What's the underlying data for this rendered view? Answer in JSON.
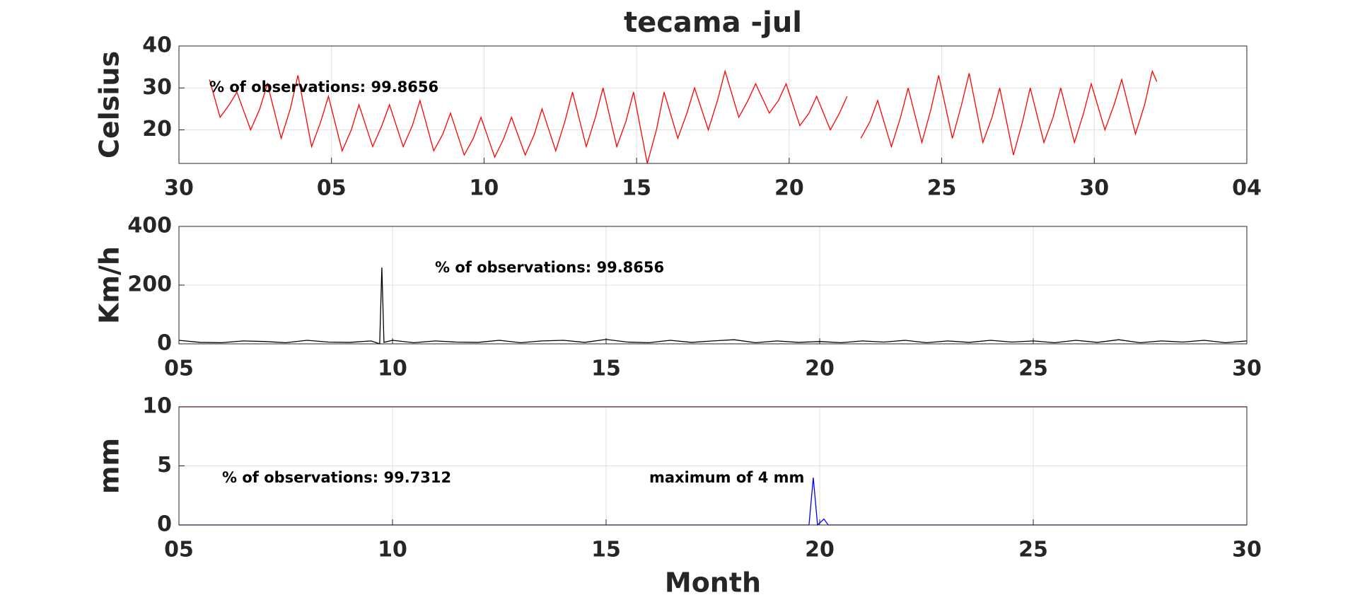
{
  "chart_data": [
    {
      "type": "line",
      "title": "tecama -jul",
      "ylabel": "Celsius",
      "grid": true,
      "xlim": [
        0,
        35
      ],
      "xticks": [
        {
          "value": 0,
          "label": "30"
        },
        {
          "value": 5,
          "label": "05"
        },
        10,
        15,
        20,
        25,
        30,
        {
          "value": 35,
          "label": "04"
        }
      ],
      "ylim": [
        12,
        40
      ],
      "yticks": [
        20,
        30,
        40
      ],
      "annotations": [
        "% of observations: 99.8656"
      ],
      "series": [
        {
          "color": "#ff0000",
          "x": [
            1,
            1.35,
            1.65,
            1.9,
            2.35,
            2.65,
            2.9,
            3.35,
            3.65,
            3.9,
            4.35,
            4.65,
            4.9,
            5.35,
            5.65,
            5.9,
            6.35,
            6.65,
            6.9,
            7.35,
            7.65,
            7.9,
            8.35,
            8.65,
            8.9,
            9.35,
            9.65,
            9.9,
            10.35,
            10.65,
            10.9,
            11.35,
            11.65,
            11.9,
            12.35,
            12.65,
            12.9,
            13.35,
            13.65,
            13.9,
            14.35,
            14.65,
            14.9,
            15.35,
            15.65,
            15.9,
            16.35,
            16.65,
            16.9,
            17.35,
            17.65,
            17.9,
            18.35,
            18.65,
            18.9,
            19.35,
            19.65,
            19.9,
            20.35,
            20.65,
            20.9,
            21.35,
            21.65,
            21.9,
            21.95,
            22.35,
            22.65,
            22.9,
            23.35,
            23.65,
            23.9,
            24.35,
            24.65,
            24.9,
            25.35,
            25.65,
            25.9,
            26.35,
            26.65,
            26.9,
            27.35,
            27.65,
            27.9,
            28.35,
            28.65,
            28.9,
            29.35,
            29.65,
            29.9,
            30.35,
            30.65,
            30.9,
            31.35,
            31.65,
            31.9,
            32.05
          ],
          "values": [
            32,
            23,
            26,
            29,
            20,
            25,
            31,
            18,
            25,
            33,
            16,
            22,
            28,
            15,
            20,
            26,
            16,
            21,
            26,
            16,
            21,
            27,
            15,
            19,
            24,
            14,
            18,
            23,
            13.5,
            18,
            23,
            14,
            19,
            25,
            15,
            22,
            29,
            16,
            23,
            30,
            16,
            22,
            29,
            12,
            20,
            29,
            18,
            24,
            30,
            20,
            27,
            34,
            23,
            27,
            31,
            24,
            27,
            31,
            21,
            24,
            28,
            20,
            24,
            28,
            null,
            18,
            22,
            27,
            16,
            23,
            30,
            17,
            25,
            33,
            18,
            26,
            33.5,
            17,
            23,
            30,
            14,
            22,
            30,
            17,
            23,
            30,
            17,
            24,
            31,
            20,
            26,
            32,
            19,
            26,
            34,
            31.5
          ]
        }
      ]
    },
    {
      "type": "line",
      "ylabel": "Km/h",
      "grid": true,
      "xlim": [
        5,
        30
      ],
      "xticks": [
        {
          "value": 5,
          "label": "05"
        },
        10,
        15,
        20,
        25,
        30
      ],
      "ylim": [
        0,
        400
      ],
      "yticks": [
        0,
        200,
        400
      ],
      "annotations": [
        "% of observations: 99.8656"
      ],
      "series": [
        {
          "color": "#000000",
          "x": [
            5,
            5.5,
            6,
            6.5,
            7,
            7.5,
            8,
            8.5,
            9,
            9.5,
            9.7,
            9.75,
            9.8,
            10,
            10.5,
            11,
            11.5,
            12,
            12.5,
            13,
            13.5,
            14,
            14.5,
            15,
            15.5,
            16,
            16.5,
            17,
            17.5,
            18,
            18.5,
            19,
            19.5,
            20,
            20.5,
            21,
            21.5,
            22,
            22.5,
            23,
            23.5,
            24,
            24.5,
            25,
            25.5,
            26,
            26.5,
            27,
            27.5,
            28,
            28.5,
            29,
            29.5,
            30
          ],
          "values": [
            12,
            5,
            4,
            10,
            8,
            4,
            12,
            6,
            5,
            10,
            0,
            260,
            5,
            12,
            4,
            10,
            6,
            5,
            12,
            4,
            10,
            12,
            5,
            15,
            6,
            4,
            12,
            5,
            10,
            14,
            4,
            10,
            5,
            8,
            4,
            10,
            6,
            12,
            4,
            10,
            5,
            12,
            6,
            10,
            4,
            12,
            5,
            14,
            4,
            10,
            6,
            12,
            4,
            10
          ]
        }
      ]
    },
    {
      "type": "line",
      "ylabel": "mm",
      "xlabel": "Month",
      "grid": true,
      "xlim": [
        5,
        30
      ],
      "xticks": [
        {
          "value": 5,
          "label": "05"
        },
        10,
        15,
        20,
        25,
        30
      ],
      "ylim": [
        0,
        10
      ],
      "yticks": [
        0,
        5,
        10
      ],
      "annotations": [
        "% of observations: 99.7312",
        "maximum of 4 mm"
      ],
      "series": [
        {
          "color": "#ff0000",
          "x": [
            5,
            30
          ],
          "values": [
            10,
            10
          ]
        },
        {
          "color": "#0000ff",
          "x": [
            5,
            19.75,
            19.85,
            19.95,
            20.1,
            20.2,
            30
          ],
          "values": [
            0,
            0,
            4,
            0,
            0.5,
            0,
            0
          ]
        }
      ]
    }
  ]
}
